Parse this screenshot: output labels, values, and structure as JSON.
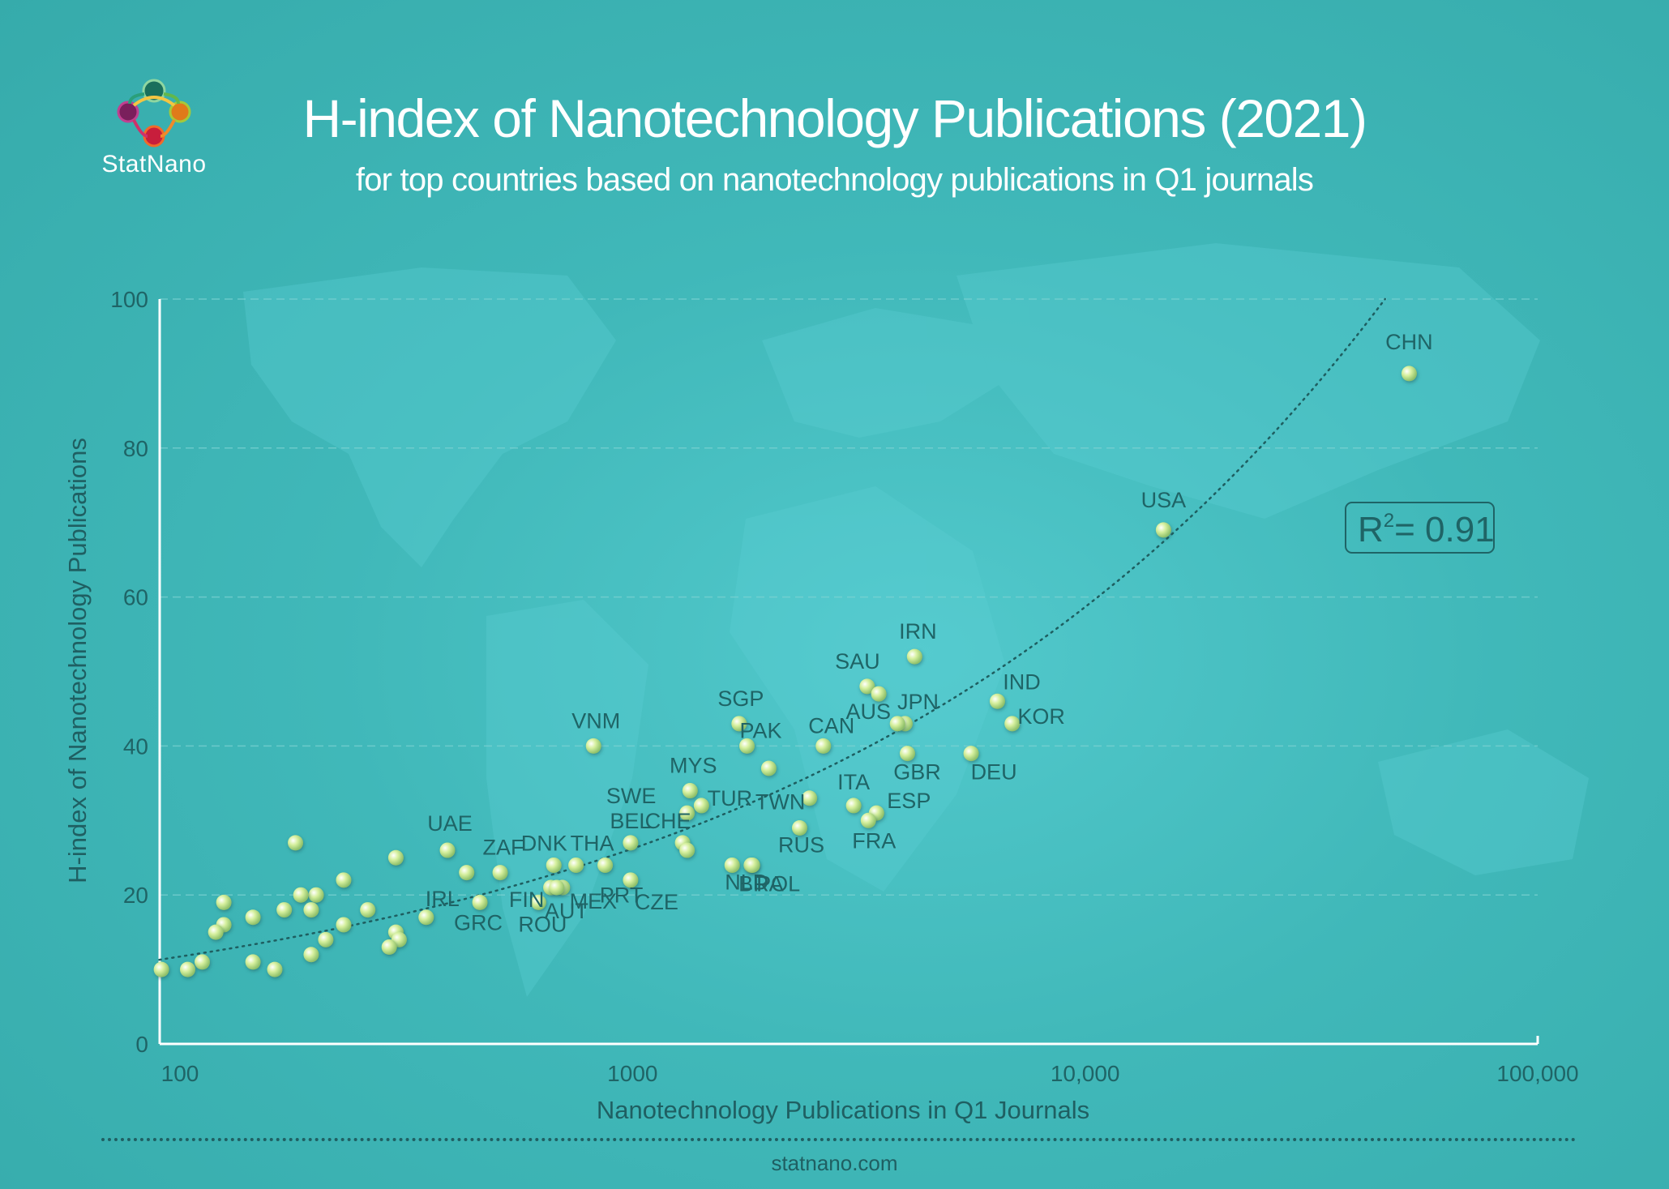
{
  "header": {
    "logo_text": "StatNano",
    "title": "H-index of Nanotechnology Publications (2021)",
    "subtitle": "for top countries based on nanotechnology publications in Q1 journals"
  },
  "footer": {
    "site": "statnano.com"
  },
  "colors": {
    "background": "#3bb3b3",
    "point": "#d9f2a6",
    "axis_text": "#1f6466",
    "trendline": "#1e5e60"
  },
  "chart_data": {
    "type": "scatter",
    "title": "",
    "xlabel": "Nanotechnology Publications in Q1 Journals",
    "ylabel": "H-index of Nanotechnology Publications",
    "x_scale": "log",
    "xlim": [
      90,
      100000
    ],
    "ylim": [
      0,
      100
    ],
    "x_ticks": [
      100,
      1000,
      10000,
      100000
    ],
    "x_tick_labels": [
      "100",
      "1000",
      "10,000",
      "100,000"
    ],
    "y_ticks": [
      0,
      20,
      40,
      60,
      80,
      100
    ],
    "y_tick_labels": [
      "0",
      "20",
      "40",
      "60",
      "80",
      "100"
    ],
    "grid": "horizontal dashed",
    "annotation": "= 0.91",
    "annotation_prefix": "R",
    "annotation_sup": "2",
    "trendline": {
      "type": "dotted",
      "from": [
        90,
        11.3
      ],
      "to": [
        46000,
        100
      ]
    },
    "points": [
      {
        "label": "CHN",
        "x": 52000,
        "y": 90
      },
      {
        "label": "USA",
        "x": 14900,
        "y": 69
      },
      {
        "label": "IRN",
        "x": 4200,
        "y": 52
      },
      {
        "label": "SAU",
        "x": 3300,
        "y": 48
      },
      {
        "label": "",
        "x": 3500,
        "y": 47
      },
      {
        "label": "IND",
        "x": 6400,
        "y": 46
      },
      {
        "label": "JPN",
        "x": 4000,
        "y": 43
      },
      {
        "label": "AUS",
        "x": 3850,
        "y": 43
      },
      {
        "label": "KOR",
        "x": 6900,
        "y": 43
      },
      {
        "label": "CAN",
        "x": 2640,
        "y": 40
      },
      {
        "label": "GBR",
        "x": 4050,
        "y": 39
      },
      {
        "label": "DEU",
        "x": 5600,
        "y": 39
      },
      {
        "label": "SGP",
        "x": 1720,
        "y": 43
      },
      {
        "label": "PAK",
        "x": 1790,
        "y": 40
      },
      {
        "label": "VNM",
        "x": 820,
        "y": 40
      },
      {
        "label": "",
        "x": 2000,
        "y": 37
      },
      {
        "label": "MYS",
        "x": 1340,
        "y": 34
      },
      {
        "label": "SWE",
        "x": 1320,
        "y": 31
      },
      {
        "label": "TUR",
        "x": 1420,
        "y": 32
      },
      {
        "label": "TWN",
        "x": 2460,
        "y": 33
      },
      {
        "label": "ITA",
        "x": 3080,
        "y": 32
      },
      {
        "label": "ESP",
        "x": 3460,
        "y": 31
      },
      {
        "label": "FRA",
        "x": 3320,
        "y": 30
      },
      {
        "label": "RUS",
        "x": 2340,
        "y": 29
      },
      {
        "label": "BEL",
        "x": 990,
        "y": 27
      },
      {
        "label": "CHE",
        "x": 1290,
        "y": 27
      },
      {
        "label": "",
        "x": 1320,
        "y": 26
      },
      {
        "label": "NLD",
        "x": 1660,
        "y": 24
      },
      {
        "label": "BRA",
        "x": 1830,
        "y": 24
      },
      {
        "label": "POL",
        "x": 1840,
        "y": 24
      },
      {
        "label": "DNK",
        "x": 670,
        "y": 24
      },
      {
        "label": "THA",
        "x": 750,
        "y": 24
      },
      {
        "label": "ZAF",
        "x": 510,
        "y": 23
      },
      {
        "label": "UAE",
        "x": 390,
        "y": 26
      },
      {
        "label": "",
        "x": 300,
        "y": 25
      },
      {
        "label": "",
        "x": 430,
        "y": 23
      },
      {
        "label": "PRT",
        "x": 870,
        "y": 24
      },
      {
        "label": "CZE",
        "x": 990,
        "y": 22
      },
      {
        "label": "FIN",
        "x": 660,
        "y": 21
      },
      {
        "label": "MEX",
        "x": 700,
        "y": 21
      },
      {
        "label": "AUT",
        "x": 680,
        "y": 21
      },
      {
        "label": "ROU",
        "x": 620,
        "y": 19
      },
      {
        "label": "GRC",
        "x": 460,
        "y": 19
      },
      {
        "label": "IRL",
        "x": 350,
        "y": 17
      },
      {
        "label": "",
        "x": 180,
        "y": 27
      },
      {
        "label": "",
        "x": 230,
        "y": 22
      },
      {
        "label": "",
        "x": 200,
        "y": 20
      },
      {
        "label": "",
        "x": 185,
        "y": 20
      },
      {
        "label": "",
        "x": 125,
        "y": 19
      },
      {
        "label": "",
        "x": 170,
        "y": 18
      },
      {
        "label": "",
        "x": 195,
        "y": 18
      },
      {
        "label": "",
        "x": 260,
        "y": 18
      },
      {
        "label": "",
        "x": 145,
        "y": 17
      },
      {
        "label": "",
        "x": 125,
        "y": 16
      },
      {
        "label": "",
        "x": 230,
        "y": 16
      },
      {
        "label": "",
        "x": 120,
        "y": 15
      },
      {
        "label": "",
        "x": 300,
        "y": 15
      },
      {
        "label": "",
        "x": 210,
        "y": 14
      },
      {
        "label": "",
        "x": 305,
        "y": 14
      },
      {
        "label": "",
        "x": 290,
        "y": 13
      },
      {
        "label": "",
        "x": 195,
        "y": 12
      },
      {
        "label": "",
        "x": 145,
        "y": 11
      },
      {
        "label": "",
        "x": 112,
        "y": 11
      },
      {
        "label": "",
        "x": 91,
        "y": 10
      },
      {
        "label": "",
        "x": 104,
        "y": 10
      },
      {
        "label": "",
        "x": 162,
        "y": 10
      }
    ]
  }
}
